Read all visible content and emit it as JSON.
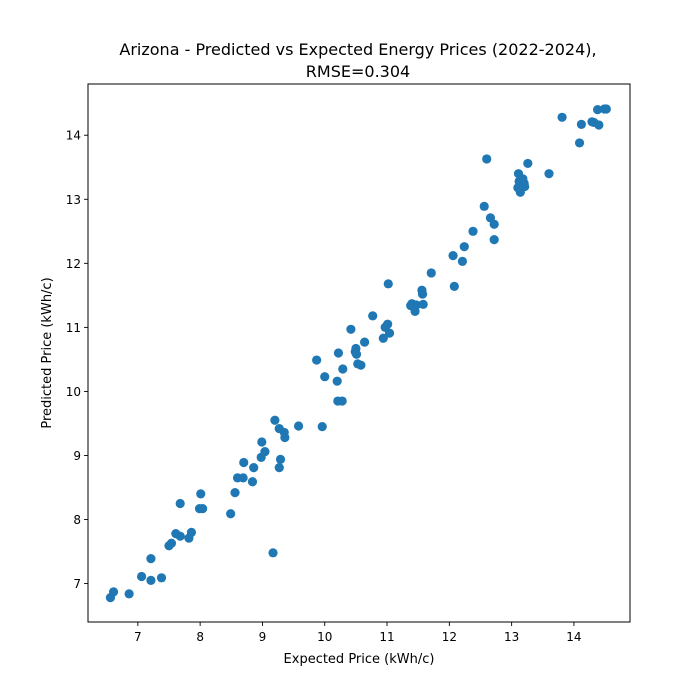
{
  "chart_data": {
    "type": "scatter",
    "title": "Arizona - Predicted vs Expected Energy Prices (2022-2024),",
    "subtitle": "RMSE=0.304",
    "xlabel": "Expected Price (kWh/c)",
    "ylabel": "Predicted Price (kWh/c)",
    "xlim": [
      6.2,
      14.9
    ],
    "ylim": [
      6.4,
      14.8
    ],
    "xticks": [
      "7",
      "8",
      "9",
      "10",
      "11",
      "12",
      "13",
      "14"
    ],
    "yticks": [
      "7",
      "8",
      "9",
      "10",
      "11",
      "12",
      "13",
      "14"
    ],
    "grid": false,
    "legend": "none",
    "marker_color": "#1f77b4",
    "points": [
      [
        6.56,
        6.78
      ],
      [
        6.61,
        6.87
      ],
      [
        6.86,
        6.84
      ],
      [
        7.06,
        7.11
      ],
      [
        7.21,
        7.05
      ],
      [
        7.21,
        7.39
      ],
      [
        7.38,
        7.09
      ],
      [
        7.5,
        7.59
      ],
      [
        7.54,
        7.63
      ],
      [
        7.61,
        7.78
      ],
      [
        7.68,
        7.74
      ],
      [
        7.68,
        8.25
      ],
      [
        7.82,
        7.71
      ],
      [
        7.86,
        7.8
      ],
      [
        7.99,
        8.17
      ],
      [
        8.01,
        8.4
      ],
      [
        8.04,
        8.17
      ],
      [
        8.49,
        8.09
      ],
      [
        8.56,
        8.42
      ],
      [
        8.6,
        8.65
      ],
      [
        8.69,
        8.65
      ],
      [
        8.7,
        8.89
      ],
      [
        8.84,
        8.59
      ],
      [
        8.86,
        8.81
      ],
      [
        8.98,
        8.97
      ],
      [
        8.99,
        9.21
      ],
      [
        9.04,
        9.06
      ],
      [
        9.17,
        7.48
      ],
      [
        9.2,
        9.55
      ],
      [
        9.27,
        9.42
      ],
      [
        9.27,
        8.81
      ],
      [
        9.29,
        8.94
      ],
      [
        9.35,
        9.36
      ],
      [
        9.36,
        9.28
      ],
      [
        9.58,
        9.46
      ],
      [
        9.87,
        10.49
      ],
      [
        9.96,
        9.45
      ],
      [
        10.0,
        10.23
      ],
      [
        10.2,
        10.16
      ],
      [
        10.22,
        10.6
      ],
      [
        10.21,
        9.85
      ],
      [
        10.28,
        9.85
      ],
      [
        10.29,
        10.35
      ],
      [
        10.42,
        10.97
      ],
      [
        10.49,
        10.62
      ],
      [
        10.5,
        10.67
      ],
      [
        10.51,
        10.58
      ],
      [
        10.53,
        10.43
      ],
      [
        10.58,
        10.41
      ],
      [
        10.64,
        10.77
      ],
      [
        10.77,
        11.18
      ],
      [
        10.94,
        10.83
      ],
      [
        10.97,
        11.0
      ],
      [
        11.01,
        11.05
      ],
      [
        11.02,
        11.68
      ],
      [
        11.04,
        10.91
      ],
      [
        11.38,
        11.34
      ],
      [
        11.4,
        11.37
      ],
      [
        11.44,
        11.32
      ],
      [
        11.45,
        11.25
      ],
      [
        11.47,
        11.35
      ],
      [
        11.56,
        11.58
      ],
      [
        11.57,
        11.52
      ],
      [
        11.58,
        11.36
      ],
      [
        11.71,
        11.85
      ],
      [
        12.06,
        12.12
      ],
      [
        12.08,
        11.64
      ],
      [
        12.21,
        12.03
      ],
      [
        12.24,
        12.26
      ],
      [
        12.38,
        12.5
      ],
      [
        12.56,
        12.89
      ],
      [
        12.6,
        13.63
      ],
      [
        12.66,
        12.71
      ],
      [
        12.72,
        12.61
      ],
      [
        12.72,
        12.37
      ],
      [
        13.1,
        13.18
      ],
      [
        13.11,
        13.4
      ],
      [
        13.12,
        13.28
      ],
      [
        13.13,
        13.21
      ],
      [
        13.14,
        13.11
      ],
      [
        13.18,
        13.32
      ],
      [
        13.2,
        13.25
      ],
      [
        13.21,
        13.2
      ],
      [
        13.26,
        13.56
      ],
      [
        13.6,
        13.4
      ],
      [
        13.81,
        14.28
      ],
      [
        14.09,
        13.88
      ],
      [
        14.12,
        14.17
      ],
      [
        14.29,
        14.21
      ],
      [
        14.32,
        14.2
      ],
      [
        14.38,
        14.4
      ],
      [
        14.4,
        14.16
      ],
      [
        14.49,
        14.41
      ],
      [
        14.52,
        14.41
      ]
    ]
  }
}
